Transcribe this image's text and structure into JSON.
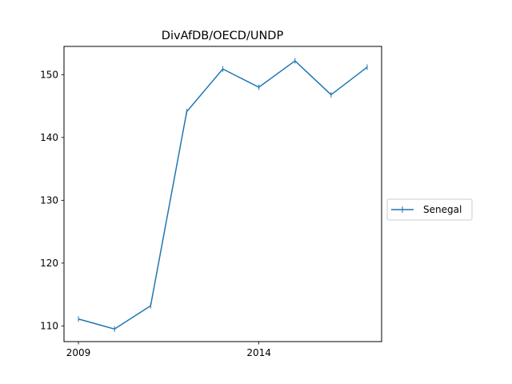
{
  "chart_data": {
    "type": "line",
    "title": "DivAfDB/OECD/UNDP",
    "xlabel": "",
    "ylabel": "",
    "x": [
      2009,
      2010,
      2011,
      2012,
      2013,
      2014,
      2015,
      2016,
      2017
    ],
    "x_tick_values": [
      2009,
      2014
    ],
    "x_tick_labels": [
      "2009",
      "2014"
    ],
    "xlim": [
      2008.6,
      2017.4
    ],
    "ylim": [
      107.5,
      154.5
    ],
    "y_tick_values": [
      110,
      120,
      130,
      140,
      150
    ],
    "y_tick_labels": [
      "110",
      "120",
      "130",
      "140",
      "150"
    ],
    "series": [
      {
        "name": "Senegal",
        "color": "#1f77b4",
        "marker": "vertical-tick",
        "values": [
          111.1,
          109.5,
          113.2,
          144.1,
          150.9,
          148.0,
          152.2,
          146.8,
          151.2
        ]
      }
    ],
    "legend_position": "center-right",
    "grid": false
  }
}
